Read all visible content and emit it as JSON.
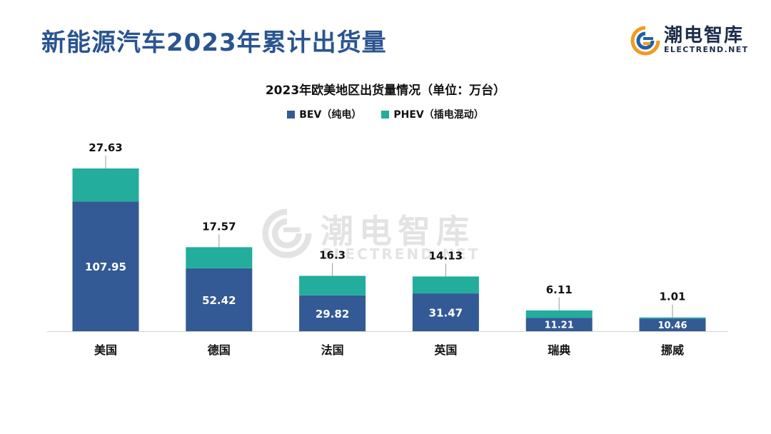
{
  "header": {
    "title": "新能源汽车2023年累计出货量"
  },
  "logo": {
    "name": "潮电智库",
    "sub": "ELECTREND.NET"
  },
  "watermark": {
    "name": "潮电智库",
    "sub": "ELECTREND.NET"
  },
  "colors": {
    "bev": "#335a94",
    "phev": "#22ad9c",
    "brand": "#2a5490",
    "logo_orange": "#f39a1e",
    "logo_blue": "#1f5fa6"
  },
  "chart_data": {
    "type": "bar",
    "stacked": true,
    "title": "2023年欧美地区出货量情况（单位：万台）",
    "categories": [
      "美国",
      "德国",
      "法国",
      "英国",
      "瑞典",
      "挪威"
    ],
    "series": [
      {
        "name": "BEV（纯电）",
        "values": [
          107.95,
          52.42,
          29.82,
          31.47,
          11.21,
          10.46
        ]
      },
      {
        "name": "PHEV（插电混动）",
        "values": [
          27.63,
          17.57,
          16.3,
          14.13,
          6.11,
          1.01
        ]
      }
    ],
    "ylim": [
      0,
      135.58
    ],
    "legend_position": "top-center",
    "grid": false,
    "data_labels": true
  }
}
